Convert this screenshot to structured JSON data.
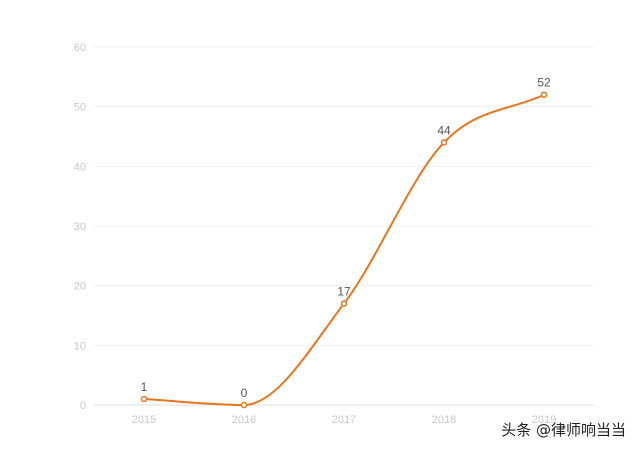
{
  "chart_data": {
    "type": "line",
    "x": [
      "2015",
      "2016",
      "2017",
      "2018",
      "2019"
    ],
    "series": [
      {
        "values": [
          1,
          0,
          17,
          44,
          52
        ],
        "color": "#E8761E"
      }
    ],
    "y_ticks": [
      0,
      10,
      20,
      30,
      40,
      50,
      60
    ],
    "ylim": [
      0,
      60
    ],
    "grid": true,
    "smooth": true,
    "data_labels": [
      "1",
      "0",
      "17",
      "44",
      "52"
    ]
  },
  "watermark": "头条 @律师响当当"
}
